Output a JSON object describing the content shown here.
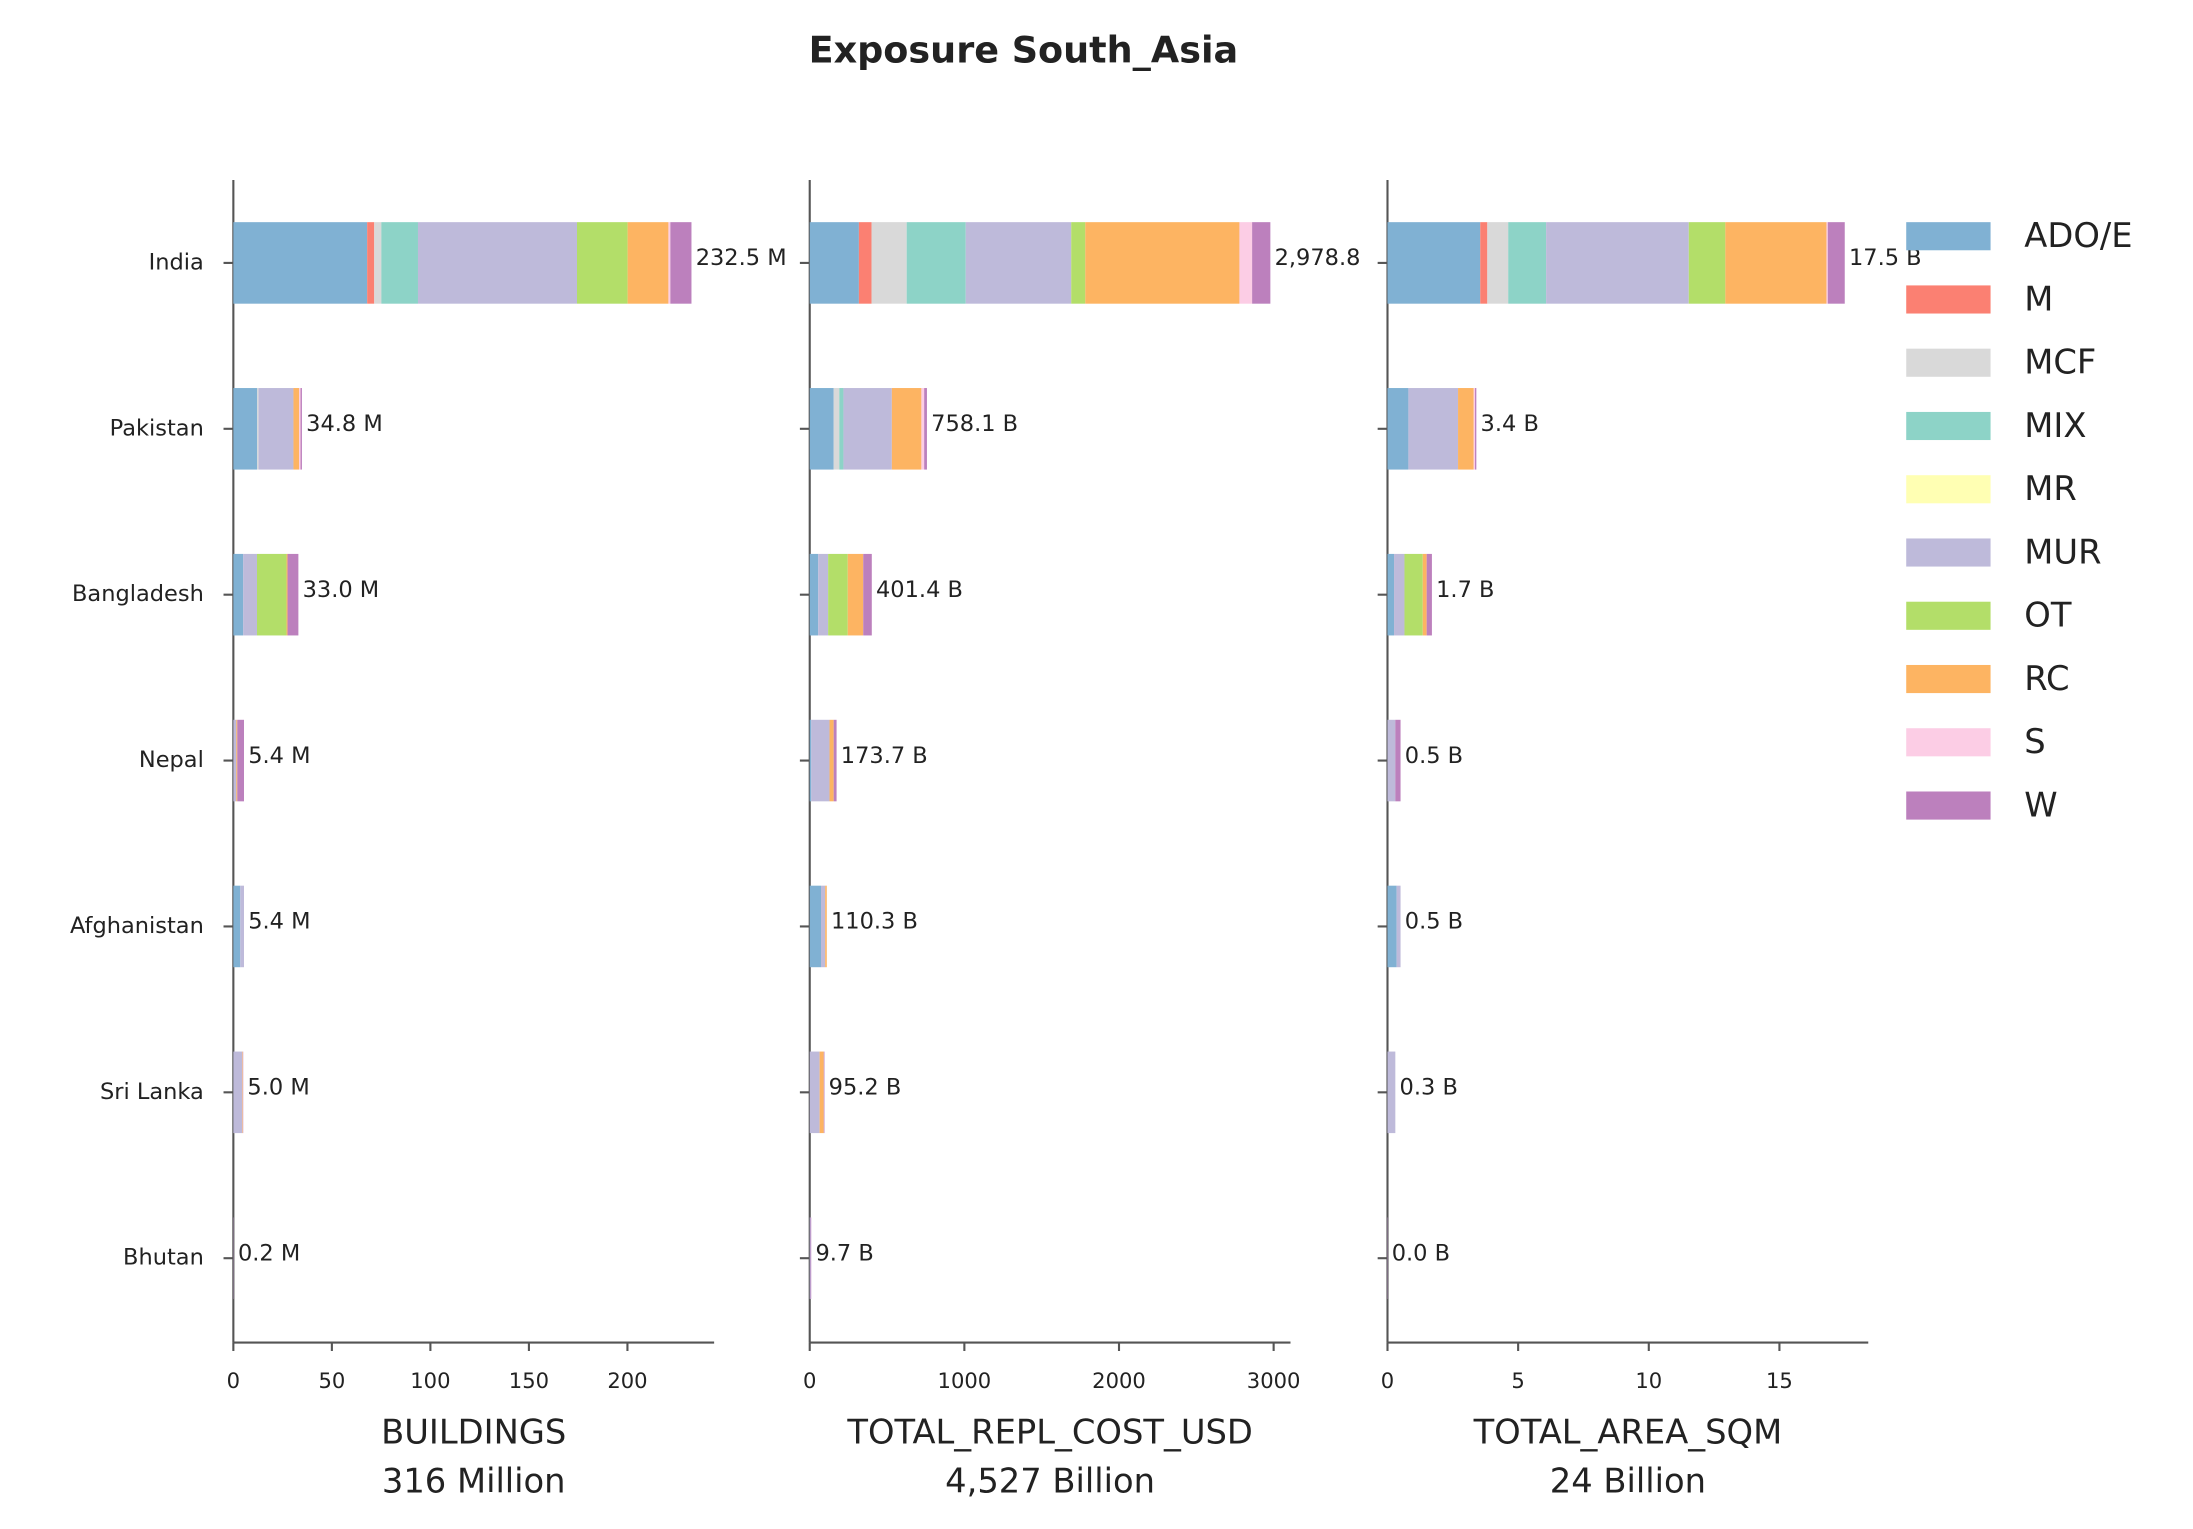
{
  "title": "Exposure South_Asia",
  "chart_data": [
    {
      "type": "bar",
      "horizontal": true,
      "xlabel": "BUILDINGS",
      "subtitle": "316 Million",
      "categories": [
        "India",
        "Pakistan",
        "Bangladesh",
        "Nepal",
        "Afghanistan",
        "Sri Lanka",
        "Bhutan"
      ],
      "series": [
        {
          "name": "ADO/E",
          "color": "#80b1d3",
          "values": [
            67.9,
            12.1,
            5,
            0,
            3.5,
            0,
            0
          ]
        },
        {
          "name": "M",
          "color": "#fb8072",
          "values": [
            3.6,
            0,
            0,
            0,
            0,
            0,
            0
          ]
        },
        {
          "name": "MCF",
          "color": "#d9d9d9",
          "values": [
            3.6,
            0.7,
            0,
            0,
            0,
            0,
            0
          ]
        },
        {
          "name": "MIX",
          "color": "#8dd3c7",
          "values": [
            18.6,
            0,
            0,
            0,
            0,
            0,
            0
          ]
        },
        {
          "name": "MR",
          "color": "#ffffb3",
          "values": [
            0,
            0,
            0,
            0,
            0,
            0,
            0
          ]
        },
        {
          "name": "MUR",
          "color": "#bebada",
          "values": [
            80.7,
            17.7,
            7,
            1.5,
            1.9,
            4.5,
            0.1
          ]
        },
        {
          "name": "OT",
          "color": "#b3de69",
          "values": [
            25.7,
            0,
            15,
            0,
            0,
            0,
            0
          ]
        },
        {
          "name": "RC",
          "color": "#fdb462",
          "values": [
            20.7,
            2.9,
            0.5,
            0.5,
            0,
            0.3,
            0
          ]
        },
        {
          "name": "S",
          "color": "#fccde5",
          "values": [
            1,
            0.7,
            0,
            0,
            0,
            0,
            0
          ]
        },
        {
          "name": "W",
          "color": "#bc80bd",
          "values": [
            10.7,
            0.7,
            5.5,
            3.4,
            0,
            0.2,
            0.1
          ]
        }
      ],
      "totals": [
        232.5,
        34.8,
        33.0,
        5.4,
        5.4,
        5.0,
        0.2
      ],
      "total_labels": [
        "232.5 M",
        "34.8 M",
        "33.0 M",
        "5.4 M",
        "5.4 M",
        "5.0 M",
        "0.2 M"
      ],
      "xlim": [
        0,
        244
      ],
      "xticks": [
        0,
        50,
        100,
        150,
        200
      ]
    },
    {
      "type": "bar",
      "horizontal": true,
      "xlabel": "TOTAL_REPL_COST_USD",
      "subtitle": "4,527 Billion",
      "categories": [
        "India",
        "Pakistan",
        "Bangladesh",
        "Nepal",
        "Afghanistan",
        "Sri Lanka",
        "Bhutan"
      ],
      "series": [
        {
          "name": "ADO/E",
          "color": "#80b1d3",
          "values": [
            318,
            155,
            55,
            10,
            73,
            0,
            0
          ]
        },
        {
          "name": "M",
          "color": "#fb8072",
          "values": [
            82,
            0,
            0,
            0,
            0,
            0,
            0
          ]
        },
        {
          "name": "MCF",
          "color": "#d9d9d9",
          "values": [
            227,
            36,
            0,
            0,
            0,
            0,
            0
          ]
        },
        {
          "name": "MIX",
          "color": "#8dd3c7",
          "values": [
            382,
            27,
            0,
            0,
            0,
            0,
            0
          ]
        },
        {
          "name": "MR",
          "color": "#ffffb3",
          "values": [
            0,
            0,
            0,
            0,
            0,
            0,
            0
          ]
        },
        {
          "name": "MUR",
          "color": "#bebada",
          "values": [
            682,
            313.1,
            64,
            118,
            27,
            64,
            5
          ]
        },
        {
          "name": "OT",
          "color": "#b3de69",
          "values": [
            91,
            0,
            127,
            0,
            0,
            0,
            0
          ]
        },
        {
          "name": "RC",
          "color": "#fdb462",
          "values": [
            996.8,
            191,
            100,
            27,
            10.3,
            27,
            0
          ]
        },
        {
          "name": "S",
          "color": "#fccde5",
          "values": [
            82,
            18,
            0,
            0,
            0,
            0,
            0
          ]
        },
        {
          "name": "W",
          "color": "#bc80bd",
          "values": [
            118,
            18,
            55.4,
            18.7,
            0,
            4.2,
            4.7
          ]
        }
      ],
      "totals": [
        2978.8,
        758.1,
        401.4,
        173.7,
        110.3,
        95.2,
        9.7
      ],
      "total_labels": [
        "2,978.8",
        "758.1 B",
        "401.4 B",
        "173.7 B",
        "110.3 B",
        "95.2 B",
        "9.7 B"
      ],
      "xlim": [
        0,
        3109
      ],
      "xticks": [
        0,
        1000,
        2000,
        3000
      ]
    },
    {
      "type": "bar",
      "horizontal": true,
      "xlabel": "TOTAL_AREA_SQM",
      "subtitle": "24 Billion",
      "categories": [
        "India",
        "Pakistan",
        "Bangladesh",
        "Nepal",
        "Afghanistan",
        "Sri Lanka",
        "Bhutan"
      ],
      "series": [
        {
          "name": "ADO/E",
          "color": "#80b1d3",
          "values": [
            3.55,
            0.8,
            0.25,
            0,
            0.35,
            0,
            0
          ]
        },
        {
          "name": "M",
          "color": "#fb8072",
          "values": [
            0.27,
            0,
            0,
            0,
            0,
            0,
            0
          ]
        },
        {
          "name": "MCF",
          "color": "#d9d9d9",
          "values": [
            0.8,
            0,
            0,
            0,
            0,
            0,
            0
          ]
        },
        {
          "name": "MIX",
          "color": "#8dd3c7",
          "values": [
            1.45,
            0,
            0,
            0,
            0,
            0,
            0
          ]
        },
        {
          "name": "MR",
          "color": "#ffffb3",
          "values": [
            0,
            0,
            0,
            0,
            0,
            0,
            0
          ]
        },
        {
          "name": "MUR",
          "color": "#bebada",
          "values": [
            5.46,
            1.9,
            0.4,
            0.3,
            0.15,
            0.3,
            0.01
          ]
        },
        {
          "name": "OT",
          "color": "#b3de69",
          "values": [
            1.4,
            0,
            0.7,
            0,
            0,
            0,
            0
          ]
        },
        {
          "name": "RC",
          "color": "#fdb462",
          "values": [
            3.87,
            0.6,
            0.15,
            0,
            0,
            0,
            0
          ]
        },
        {
          "name": "S",
          "color": "#fccde5",
          "values": [
            0.05,
            0.05,
            0,
            0,
            0,
            0,
            0
          ]
        },
        {
          "name": "W",
          "color": "#bc80bd",
          "values": [
            0.65,
            0.05,
            0.2,
            0.2,
            0,
            0,
            0.01
          ]
        }
      ],
      "totals": [
        17.5,
        3.4,
        1.7,
        0.5,
        0.5,
        0.3,
        0.0
      ],
      "total_labels": [
        "17.5 B",
        "3.4 B",
        "1.7 B",
        "0.5 B",
        "0.5 B",
        "0.3 B",
        "0.0 B"
      ],
      "xlim": [
        0,
        18.4
      ],
      "xticks": [
        0,
        5,
        10,
        15
      ]
    }
  ]
}
